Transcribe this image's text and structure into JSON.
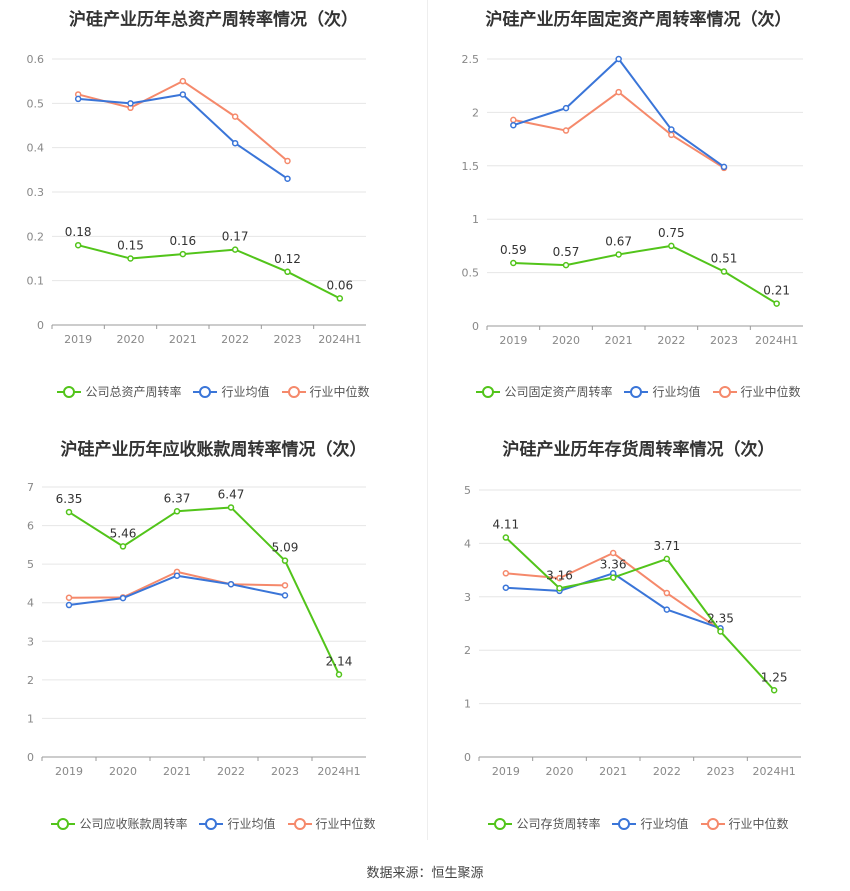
{
  "source_text": "数据来源：恒生聚源",
  "colors": {
    "company": "#52c41a",
    "avg": "#3a75d8",
    "median": "#f5896b",
    "grid": "#e6e6e6",
    "axis": "#999999"
  },
  "chart_data": [
    {
      "type": "line",
      "title": "沪硅产业历年总资产周转率情况（次）",
      "categories": [
        "2019",
        "2020",
        "2021",
        "2022",
        "2023",
        "2024H1"
      ],
      "yticks": [
        "0",
        "0.1",
        "0.2",
        "0.3",
        "0.4",
        "0.5",
        "0.6"
      ],
      "ylim": [
        0,
        0.6
      ],
      "series": [
        {
          "name": "公司总资产周转率",
          "key": "company",
          "values": [
            0.18,
            0.15,
            0.16,
            0.17,
            0.12,
            0.06
          ],
          "labels": [
            "0.18",
            "0.15",
            "0.16",
            "0.17",
            "0.12",
            "0.06"
          ]
        },
        {
          "name": "行业均值",
          "key": "avg",
          "values": [
            0.51,
            0.5,
            0.52,
            0.41,
            0.33,
            null
          ]
        },
        {
          "name": "行业中位数",
          "key": "median",
          "values": [
            0.52,
            0.49,
            0.55,
            0.47,
            0.37,
            null
          ]
        }
      ]
    },
    {
      "type": "line",
      "title": "沪硅产业历年固定资产周转率情况（次）",
      "categories": [
        "2019",
        "2020",
        "2021",
        "2022",
        "2023",
        "2024H1"
      ],
      "yticks": [
        "0",
        "0.5",
        "1",
        "1.5",
        "2",
        "2.5"
      ],
      "ylim": [
        0,
        2.5
      ],
      "series": [
        {
          "name": "公司固定资产周转率",
          "key": "company",
          "values": [
            0.59,
            0.57,
            0.67,
            0.75,
            0.51,
            0.21
          ],
          "labels": [
            "0.59",
            "0.57",
            "0.67",
            "0.75",
            "0.51",
            "0.21"
          ]
        },
        {
          "name": "行业均值",
          "key": "avg",
          "values": [
            1.88,
            2.04,
            2.5,
            1.84,
            1.49,
            null
          ]
        },
        {
          "name": "行业中位数",
          "key": "median",
          "values": [
            1.93,
            1.83,
            2.19,
            1.79,
            1.48,
            null
          ]
        }
      ]
    },
    {
      "type": "line",
      "title": "沪硅产业历年应收账款周转率情况（次）",
      "categories": [
        "2019",
        "2020",
        "2021",
        "2022",
        "2023",
        "2024H1"
      ],
      "yticks": [
        "0",
        "1",
        "2",
        "3",
        "4",
        "5",
        "6",
        "7"
      ],
      "ylim": [
        0,
        7
      ],
      "series": [
        {
          "name": "公司应收账款周转率",
          "key": "company",
          "values": [
            6.35,
            5.46,
            6.37,
            6.47,
            5.09,
            2.14
          ],
          "labels": [
            "6.35",
            "5.46",
            "6.37",
            "6.47",
            "5.09",
            "2.14"
          ]
        },
        {
          "name": "行业均值",
          "key": "avg",
          "values": [
            3.94,
            4.12,
            4.7,
            4.48,
            4.19,
            null
          ]
        },
        {
          "name": "行业中位数",
          "key": "median",
          "values": [
            4.13,
            4.14,
            4.8,
            4.48,
            4.45,
            null
          ]
        }
      ]
    },
    {
      "type": "line",
      "title": "沪硅产业历年存货周转率情况（次）",
      "categories": [
        "2019",
        "2020",
        "2021",
        "2022",
        "2023",
        "2024H1"
      ],
      "yticks": [
        "0",
        "1",
        "2",
        "3",
        "4",
        "5"
      ],
      "ylim": [
        0,
        5
      ],
      "series": [
        {
          "name": "公司存货周转率",
          "key": "company",
          "values": [
            4.11,
            3.16,
            3.36,
            3.71,
            2.35,
            1.25
          ],
          "labels": [
            "4.11",
            "3.16",
            "3.36",
            "3.71",
            "2.35",
            "1.25"
          ]
        },
        {
          "name": "行业均值",
          "key": "avg",
          "values": [
            3.17,
            3.11,
            3.44,
            2.76,
            2.41,
            null
          ]
        },
        {
          "name": "行业中位数",
          "key": "median",
          "values": [
            3.44,
            3.35,
            3.82,
            3.07,
            2.38,
            null
          ]
        }
      ]
    }
  ]
}
